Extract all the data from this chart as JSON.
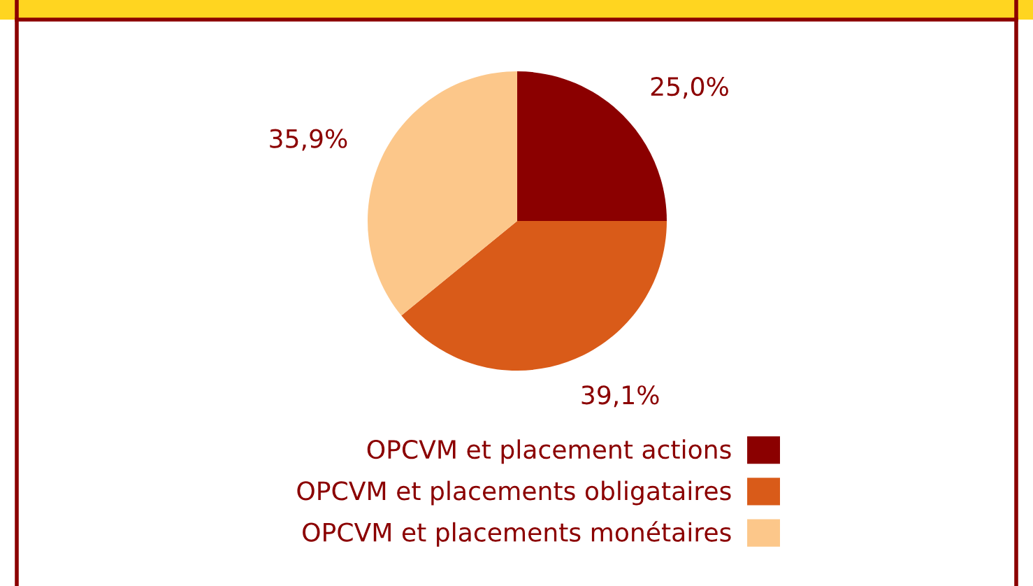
{
  "chart_data": {
    "type": "pie",
    "categories": [
      "OPCVM et placement actions",
      "OPCVM et placements obligataires",
      "OPCVM et placements monétaires"
    ],
    "values": [
      25.0,
      39.1,
      35.9
    ],
    "colors": [
      "#8b0000",
      "#d95b19",
      "#fcc78a"
    ],
    "value_labels": [
      "25,0%",
      "39,1%",
      "35,9%"
    ],
    "legend": "bottom"
  }
}
